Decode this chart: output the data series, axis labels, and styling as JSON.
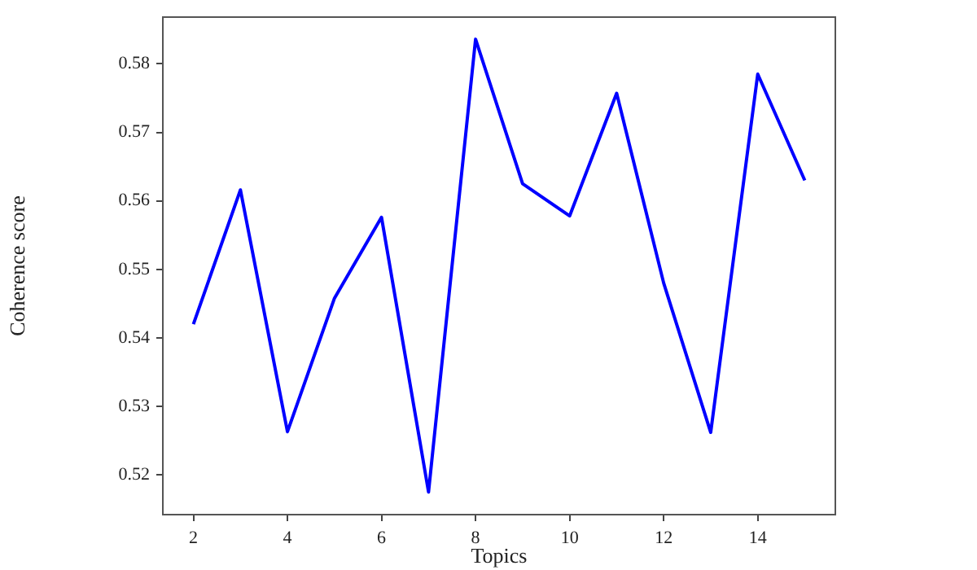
{
  "chart_data": {
    "type": "line",
    "xlabel": "Topics",
    "ylabel": "Coherence score",
    "x": [
      2,
      3,
      4,
      5,
      6,
      7,
      8,
      9,
      10,
      11,
      12,
      13,
      14,
      15
    ],
    "series": [
      {
        "color": "#0000ff",
        "values": [
          0.542,
          0.5616,
          0.5263,
          0.5458,
          0.5576,
          0.5175,
          0.5836,
          0.5625,
          0.5578,
          0.5757,
          0.548,
          0.5262,
          0.5785,
          0.563
        ]
      }
    ],
    "xlim": [
      1.35,
      15.65
    ],
    "xticks": [
      2,
      4,
      6,
      8,
      10,
      12,
      14
    ],
    "ylim": [
      0.5142,
      0.5868
    ],
    "yticks": [
      0.52,
      0.53,
      0.54,
      0.55,
      0.56,
      0.57,
      0.58
    ],
    "grid": false,
    "legend": false,
    "marker": "none",
    "line_style": "solid"
  }
}
